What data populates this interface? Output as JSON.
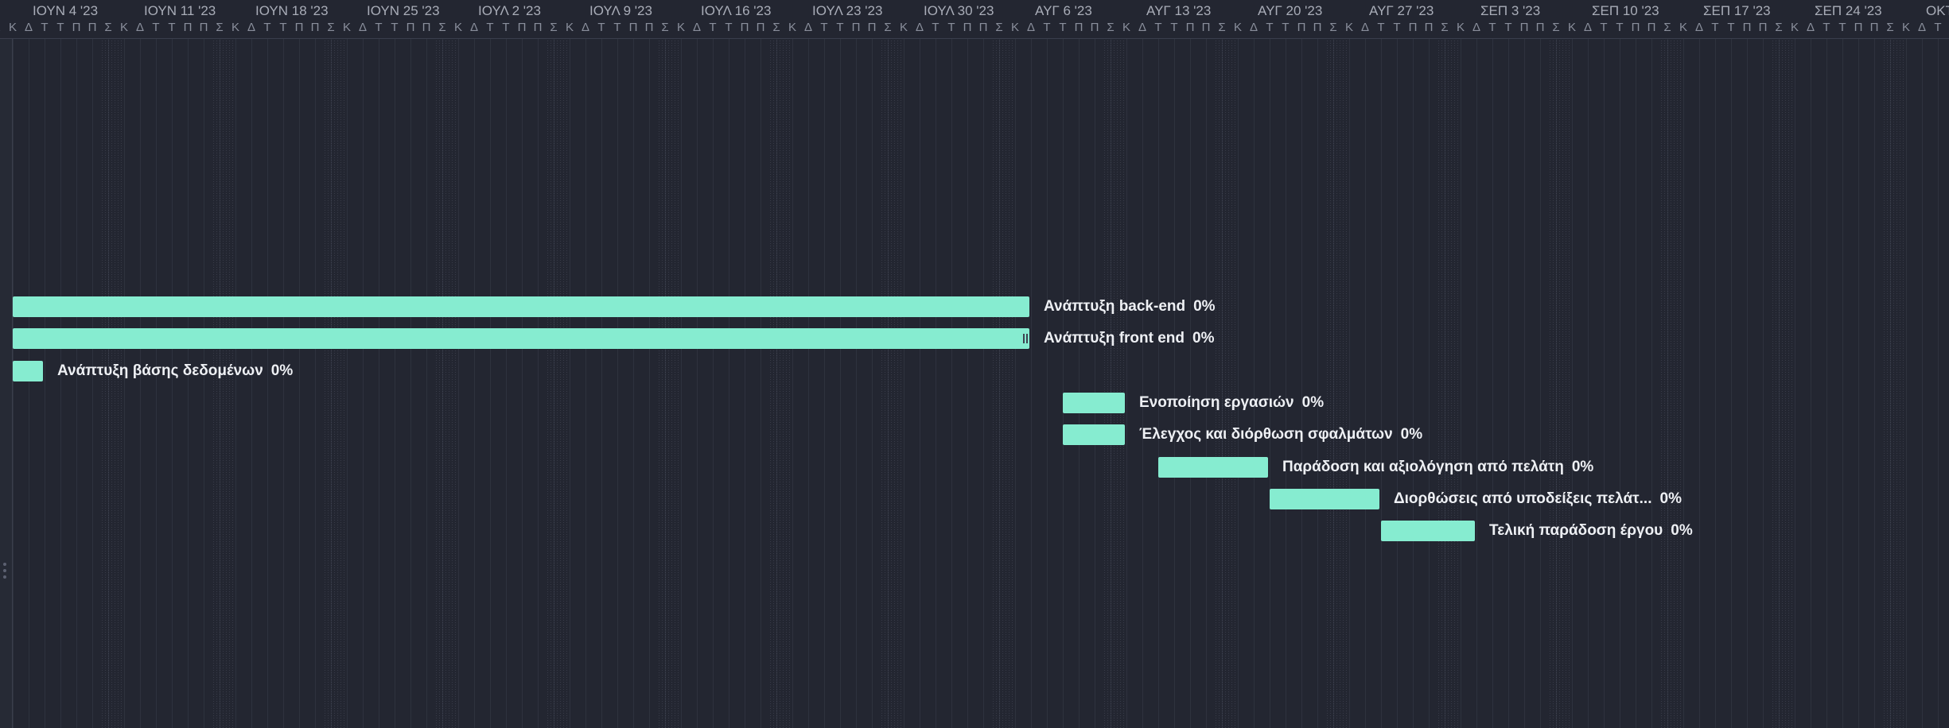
{
  "timeline": {
    "weeks": [
      "ΙΟΥΝ 4 '23",
      "ΙΟΥΝ 11 '23",
      "ΙΟΥΝ 18 '23",
      "ΙΟΥΝ 25 '23",
      "ΙΟΥΛ 2 '23",
      "ΙΟΥΛ 9 '23",
      "ΙΟΥΛ 16 '23",
      "ΙΟΥΛ 23 '23",
      "ΙΟΥΛ 30 '23",
      "ΑΥΓ 6 '23",
      "ΑΥΓ 13 '23",
      "ΑΥΓ 20 '23",
      "ΑΥΓ 27 '23",
      "ΣΕΠ 3 '23",
      "ΣΕΠ 10 '23",
      "ΣΕΠ 17 '23",
      "ΣΕΠ 24 '23",
      "ΟΚΤ"
    ],
    "day_letters": [
      "Κ",
      "Δ",
      "Τ",
      "Τ",
      "Π",
      "Π",
      "Σ"
    ]
  },
  "tasks": [
    {
      "name": "Ανάπτυξη back-end",
      "progress": "0%",
      "start": "2023-06-04",
      "end": "2023-08-07"
    },
    {
      "name": "Ανάπτυξη front end",
      "progress": "0%",
      "start": "2023-06-04",
      "end": "2023-08-07"
    },
    {
      "name": "Ανάπτυξη βάσης δεδομένων",
      "progress": "0%",
      "start": "2023-06-04",
      "end": "2023-06-06"
    },
    {
      "name": "Ενοποίηση εργασιών",
      "progress": "0%",
      "start": "2023-08-09",
      "end": "2023-08-13"
    },
    {
      "name": "Έλεγχος και διόρθωση σφαλμάτων",
      "progress": "0%",
      "start": "2023-08-09",
      "end": "2023-08-13"
    },
    {
      "name": "Παράδοση και αξιολόγηση από πελάτη",
      "progress": "0%",
      "start": "2023-08-15",
      "end": "2023-08-22"
    },
    {
      "name": "Διορθώσεις από υποδείξεις πελάτ...",
      "progress": "0%",
      "start": "2023-08-22",
      "end": "2023-08-29"
    },
    {
      "name": "Τελική παράδοση έργου",
      "progress": "0%",
      "start": "2023-08-29",
      "end": "2023-09-04"
    }
  ],
  "colors": {
    "background": "#232631",
    "bar": "#86ecd0",
    "label": "#eef0f4",
    "header_text": "#a9adb8"
  }
}
